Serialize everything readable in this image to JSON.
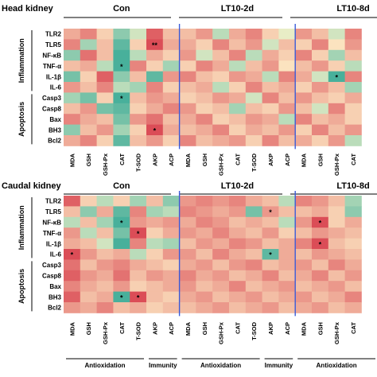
{
  "chart_data": [
    {
      "type": "heatmap",
      "title": "Head kidney",
      "groups": [
        "Con",
        "LT10-2d",
        "LT10-8d"
      ],
      "columns": [
        "MDA",
        "GSH",
        "GSH-Px",
        "CAT",
        "T-SOD",
        "AKP",
        "ACP"
      ],
      "rows": [
        "TLR2",
        "TLR5",
        "NF-κB",
        "TNF-α",
        "IL-1β",
        "IL-6",
        "Casp3",
        "Casp8",
        "Bax",
        "BH3",
        "Bcl2"
      ],
      "row_categories": [
        {
          "name": "Inflammation",
          "rows": [
            "TLR2",
            "TLR5",
            "NF-κB",
            "TNF-α",
            "IL-1β",
            "IL-6"
          ]
        },
        {
          "name": "Apoptosis",
          "rows": [
            "Casp3",
            "Casp8",
            "Bax",
            "BH3",
            "Bcl2"
          ]
        }
      ],
      "color_scale": {
        "min_color": "#1a9e8f",
        "mid_color": "#fff6cc",
        "max_color": "#d73a4a",
        "range": [
          -1,
          1
        ]
      },
      "visible_columns": 18,
      "values": [
        [
          0.4,
          0.6,
          0.2,
          -0.5,
          -0.2,
          0.8,
          0.3,
          0.3,
          0.5,
          -0.3,
          0.4,
          0.6,
          0.2,
          -0.1,
          0.5,
          0.3,
          -0.2,
          0.6
        ],
        [
          0.6,
          -0.4,
          0.3,
          -0.7,
          0.2,
          0.9,
          0.4,
          0.4,
          0.2,
          0.6,
          0.3,
          0.5,
          -0.2,
          0.3,
          0.2,
          0.6,
          0.1,
          0.5
        ],
        [
          -0.5,
          0.7,
          0.3,
          -0.8,
          -0.3,
          0.4,
          0.2,
          0.5,
          -0.2,
          0.3,
          0.6,
          -0.3,
          0.4,
          0.2,
          0.6,
          0.2,
          -0.4,
          0.3
        ],
        [
          0.3,
          0.4,
          -0.3,
          -0.8,
          0.6,
          0.2,
          -0.4,
          0.2,
          0.6,
          0.4,
          -0.3,
          0.3,
          0.5,
          0.1,
          0.3,
          0.5,
          0.2,
          -0.3
        ],
        [
          -0.6,
          0.2,
          0.8,
          -0.5,
          0.3,
          -0.7,
          0.5,
          0.6,
          0.3,
          0.2,
          0.5,
          0.4,
          -0.3,
          0.6,
          0.4,
          -0.2,
          -0.8,
          0.6
        ],
        [
          0.5,
          0.3,
          0.6,
          -0.3,
          -0.4,
          0.6,
          0.2,
          0.3,
          0.4,
          -0.3,
          0.2,
          0.6,
          0.3,
          0.4,
          0.2,
          0.5,
          0.3,
          -0.4
        ],
        [
          -0.4,
          -0.6,
          0.2,
          -0.8,
          0.3,
          0.5,
          0.4,
          0.2,
          0.3,
          0.5,
          0.4,
          -0.2,
          0.6,
          0.3,
          0.5,
          0.3,
          0.2,
          0.4
        ],
        [
          0.3,
          0.5,
          -0.6,
          -0.7,
          0.2,
          0.4,
          0.6,
          0.5,
          0.2,
          0.3,
          -0.4,
          0.3,
          0.2,
          0.5,
          0.3,
          -0.2,
          0.6,
          0.2
        ],
        [
          0.6,
          0.4,
          0.3,
          -0.6,
          0.5,
          0.7,
          0.3,
          0.4,
          0.6,
          0.2,
          0.3,
          0.5,
          0.4,
          -0.3,
          0.6,
          0.3,
          0.4,
          0.2
        ],
        [
          -0.5,
          0.3,
          0.5,
          -0.4,
          0.2,
          0.9,
          0.4,
          0.3,
          0.4,
          0.6,
          0.2,
          0.4,
          0.3,
          0.5,
          0.2,
          0.6,
          0.3,
          0.5
        ],
        [
          0.4,
          0.6,
          0.2,
          -0.7,
          0.3,
          0.5,
          0.2,
          0.6,
          0.3,
          0.4,
          0.5,
          0.2,
          0.6,
          0.3,
          0.4,
          0.2,
          0.5,
          -0.3
        ]
      ],
      "significance": [
        {
          "row": 1,
          "col": 5,
          "label": "**"
        },
        {
          "row": 3,
          "col": 3,
          "label": "*"
        },
        {
          "row": 4,
          "col": 16,
          "label": "*"
        },
        {
          "row": 6,
          "col": 3,
          "label": "*"
        },
        {
          "row": 9,
          "col": 5,
          "label": "*"
        }
      ]
    },
    {
      "type": "heatmap",
      "title": "Caudal kidney",
      "groups": [
        "Con",
        "LT10-2d",
        "LT10-8d"
      ],
      "columns": [
        "MDA",
        "GSH",
        "GSH-Px",
        "CAT",
        "T-SOD",
        "AKP",
        "ACP"
      ],
      "rows": [
        "TLR2",
        "TLR5",
        "NF-κB",
        "TNF-α",
        "IL-1β",
        "IL-6",
        "Casp3",
        "Casp8",
        "Bax",
        "BH3",
        "Bcl2"
      ],
      "row_categories": [
        {
          "name": "Inflammation",
          "rows": [
            "TLR2",
            "TLR5",
            "NF-κB",
            "TNF-α",
            "IL-1β",
            "IL-6"
          ]
        },
        {
          "name": "Apoptosis",
          "rows": [
            "Casp3",
            "Casp8",
            "Bax",
            "BH3",
            "Bcl2"
          ]
        }
      ],
      "column_categories": [
        {
          "group": "Con",
          "name": "Antioxidation",
          "columns": [
            "MDA",
            "GSH",
            "GSH-Px",
            "CAT",
            "T-SOD"
          ]
        },
        {
          "group": "Con",
          "name": "Immunity",
          "columns": [
            "AKP",
            "ACP"
          ]
        },
        {
          "group": "LT10-2d",
          "name": "Antioxidation",
          "columns": [
            "MDA",
            "GSH",
            "GSH-Px",
            "CAT",
            "T-SOD"
          ]
        },
        {
          "group": "LT10-2d",
          "name": "Immunity",
          "columns": [
            "AKP",
            "ACP"
          ]
        },
        {
          "group": "LT10-8d",
          "name": "Antioxidation",
          "columns": [
            "MDA",
            "GSH",
            "GSH-Px",
            "CAT",
            "T-SOD"
          ]
        }
      ],
      "color_scale": {
        "min_color": "#1a9e8f",
        "mid_color": "#fff6cc",
        "max_color": "#d73a4a",
        "range": [
          -1,
          1
        ]
      },
      "visible_columns": 18,
      "values": [
        [
          0.8,
          0.2,
          -0.3,
          0.2,
          -0.4,
          0.3,
          -0.5,
          0.5,
          0.6,
          0.5,
          0.6,
          0.4,
          0.3,
          -0.3,
          0.6,
          0.5,
          0.3,
          -0.4
        ],
        [
          0.3,
          -0.5,
          0.4,
          -0.7,
          0.6,
          -0.4,
          -0.3,
          0.6,
          0.5,
          0.4,
          0.5,
          -0.6,
          0.5,
          0.3,
          0.3,
          0.4,
          0.2,
          -0.5
        ],
        [
          -0.3,
          0.3,
          -0.4,
          -0.8,
          0.5,
          0.4,
          0.5,
          0.4,
          0.6,
          0.5,
          0.3,
          0.4,
          0.3,
          -0.3,
          0.5,
          0.9,
          0.2,
          0.4
        ],
        [
          0.5,
          -0.3,
          0.3,
          -0.6,
          0.9,
          0.2,
          0.4,
          0.5,
          0.4,
          0.6,
          0.4,
          0.3,
          0.5,
          0.2,
          0.3,
          0.5,
          0.4,
          0.3
        ],
        [
          0.4,
          0.3,
          -0.2,
          -0.8,
          0.6,
          -0.3,
          -0.4,
          0.3,
          0.5,
          0.4,
          0.6,
          0.5,
          0.3,
          0.4,
          0.6,
          0.9,
          0.3,
          0.2
        ],
        [
          0.9,
          0.5,
          0.3,
          0.4,
          -0.3,
          0.2,
          0.5,
          0.5,
          0.3,
          0.6,
          0.4,
          0.3,
          -0.7,
          0.4,
          0.3,
          0.5,
          0.4,
          0.3
        ],
        [
          0.7,
          0.3,
          0.5,
          0.6,
          0.4,
          0.3,
          0.2,
          0.4,
          0.5,
          0.3,
          0.5,
          0.6,
          0.3,
          0.4,
          0.5,
          0.3,
          0.6,
          0.4
        ],
        [
          0.8,
          0.5,
          0.4,
          0.7,
          0.3,
          0.5,
          0.4,
          0.6,
          0.4,
          0.5,
          0.3,
          0.4,
          0.6,
          0.3,
          0.4,
          0.6,
          0.3,
          0.5
        ],
        [
          0.6,
          0.4,
          0.3,
          0.5,
          0.2,
          0.3,
          0.4,
          0.5,
          0.3,
          0.4,
          0.6,
          0.3,
          0.4,
          0.5,
          0.3,
          0.4,
          0.5,
          0.3
        ],
        [
          0.8,
          0.3,
          0.4,
          -0.8,
          0.9,
          0.3,
          0.2,
          0.4,
          0.5,
          0.3,
          0.4,
          0.5,
          0.3,
          0.4,
          0.5,
          0.3,
          0.4,
          0.6
        ],
        [
          0.5,
          0.4,
          0.6,
          0.3,
          0.4,
          0.2,
          0.3,
          0.3,
          0.4,
          0.5,
          0.3,
          0.4,
          0.5,
          0.3,
          0.4,
          0.5,
          0.3,
          0.4
        ]
      ],
      "significance": [
        {
          "row": 1,
          "col": 12,
          "label": "*"
        },
        {
          "row": 2,
          "col": 3,
          "label": "*"
        },
        {
          "row": 2,
          "col": 15,
          "label": "*"
        },
        {
          "row": 3,
          "col": 4,
          "label": "*"
        },
        {
          "row": 4,
          "col": 15,
          "label": "*"
        },
        {
          "row": 5,
          "col": 0,
          "label": "*"
        },
        {
          "row": 5,
          "col": 12,
          "label": "*"
        },
        {
          "row": 9,
          "col": 3,
          "label": "*"
        },
        {
          "row": 9,
          "col": 4,
          "label": "*"
        }
      ]
    }
  ]
}
